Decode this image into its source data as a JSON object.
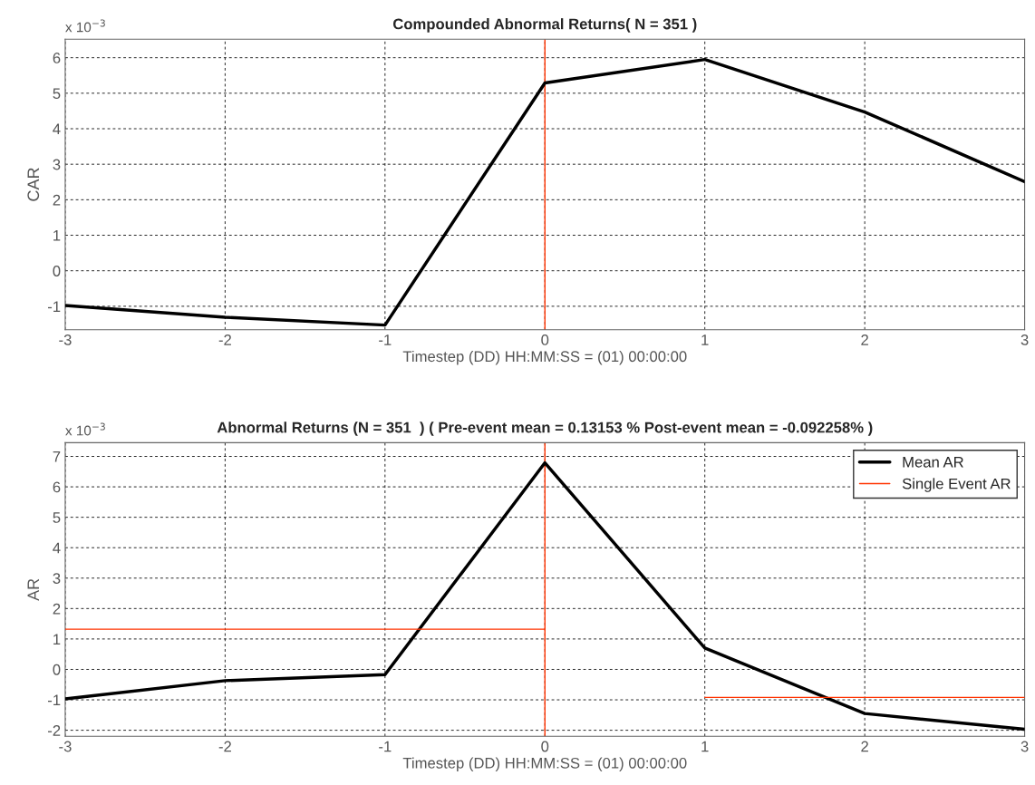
{
  "chart_data": [
    {
      "type": "line",
      "title": "Compounded Abnormal Returns( N = 351 )",
      "xlabel": "Timestep (DD) HH:MM:SS = (01) 00:00:00",
      "ylabel": "CAR",
      "annotations": [
        "x 10$^{−3}$"
      ],
      "x": [
        -3,
        -2,
        -1,
        0,
        1,
        2,
        3
      ],
      "series": [
        {
          "color": "#000000",
          "values": [
            -0.98,
            -1.31,
            -1.53,
            5.29,
            5.95,
            4.47,
            2.51
          ]
        }
      ],
      "ref_lines": [
        {
          "axis": "x",
          "value": 0,
          "color": "#ff3300"
        }
      ],
      "xlim": [
        -3,
        3
      ],
      "xticks": [
        -3,
        -2,
        -1,
        0,
        1,
        2,
        3
      ],
      "ylim": [
        -1.66,
        6.52
      ],
      "yticks": [
        -1,
        0,
        1,
        2,
        3,
        4,
        5,
        6
      ],
      "grid": true,
      "line_style": "solid",
      "marker": "none"
    },
    {
      "type": "line",
      "title": "Abnormal Returns (N = 351  ) ( Pre-event mean = 0.13153 % Post-event mean = -0.092258% )",
      "xlabel": "Timestep (DD) HH:MM:SS = (01) 00:00:00",
      "ylabel": "AR",
      "annotations": [
        "x 10$^{−3}$"
      ],
      "x": [
        -3,
        -2,
        -1,
        0,
        1,
        2,
        3
      ],
      "series": [
        {
          "name": "Mean AR",
          "color": "#000000",
          "values": [
            -0.97,
            -0.37,
            -0.17,
            6.79,
            0.7,
            -1.45,
            -1.97
          ]
        },
        {
          "name": "Single Event AR",
          "color": "#ff3300",
          "x": [
            -3,
            0,
            null,
            1,
            3
          ],
          "values": [
            1.32,
            1.32,
            null,
            -0.92,
            -0.92
          ]
        }
      ],
      "ref_lines": [
        {
          "axis": "x",
          "value": 0,
          "color": "#ff3300"
        }
      ],
      "xlim": [
        -3,
        3
      ],
      "xticks": [
        -3,
        -2,
        -1,
        0,
        1,
        2,
        3
      ],
      "ylim": [
        -2.2,
        7.45
      ],
      "yticks": [
        -2,
        -1,
        0,
        1,
        2,
        3,
        4,
        5,
        6,
        7
      ],
      "grid": true,
      "legend": "top right",
      "line_style": "solid",
      "marker": "none"
    }
  ]
}
